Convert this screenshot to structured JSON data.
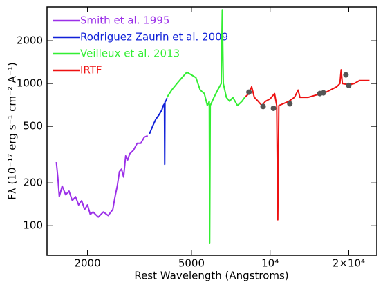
{
  "chart_data": {
    "type": "line",
    "xlabel": "Rest Wavelength (Angstroms)",
    "ylabel": "Fλ (10⁻¹⁷ erg s⁻¹ cm⁻² A⁻¹)",
    "xscale": "log",
    "yscale": "log",
    "xlim": [
      1400,
      25600
    ],
    "ylim": [
      62,
      3460
    ],
    "xticks": [
      {
        "value": 2000,
        "label": "2000"
      },
      {
        "value": 5000,
        "label": "5000"
      },
      {
        "value": 10000,
        "label": "10⁴"
      },
      {
        "value": 20000,
        "label": "2×10⁴"
      }
    ],
    "yticks": [
      100,
      200,
      500,
      1000,
      2000
    ],
    "legend": "upper left",
    "series": [
      {
        "name": "Smith et al. 1995",
        "color": "#9b30e8",
        "x": [
          1520,
          1540,
          1560,
          1600,
          1650,
          1700,
          1750,
          1800,
          1850,
          1900,
          1950,
          2000,
          2050,
          2100,
          2200,
          2300,
          2400,
          2500,
          2550,
          2600,
          2650,
          2700,
          2750,
          2800,
          2850,
          2900,
          3000,
          3100,
          3200,
          3300,
          3400
        ],
        "values": [
          280,
          220,
          160,
          190,
          165,
          175,
          150,
          160,
          140,
          150,
          130,
          140,
          120,
          125,
          115,
          125,
          118,
          130,
          160,
          190,
          240,
          250,
          220,
          310,
          290,
          320,
          340,
          380,
          380,
          420,
          430
        ]
      },
      {
        "name": "Rodriguez Zaurin et al. 2009",
        "color": "#1020d8",
        "x": [
          3450,
          3550,
          3650,
          3750,
          3850,
          3900,
          3940,
          3950,
          3960,
          4000,
          4030
        ],
        "values": [
          440,
          500,
          560,
          600,
          650,
          700,
          720,
          270,
          740,
          760,
          790
        ]
      },
      {
        "name": "Veilleux et al. 2013",
        "color": "#33ee33",
        "x": [
          4030,
          4200,
          4400,
          4600,
          4800,
          5000,
          5200,
          5400,
          5600,
          5750,
          5850,
          5870,
          5900,
          6100,
          6300,
          6500,
          6560,
          6620,
          6800,
          7000,
          7200,
          7500,
          7800,
          8000
        ],
        "values": [
          800,
          900,
          1000,
          1100,
          1200,
          1150,
          1100,
          900,
          850,
          700,
          750,
          75,
          700,
          800,
          900,
          1000,
          3300,
          1000,
          800,
          750,
          800,
          700,
          750,
          800
        ]
      },
      {
        "name": "IRTF",
        "color": "#ee1111",
        "x": [
          8000,
          8300,
          8500,
          8700,
          9000,
          9300,
          9600,
          10000,
          10400,
          10600,
          10700,
          10800,
          11200,
          11800,
          12400,
          12800,
          13000,
          14000,
          15000,
          16000,
          17000,
          18000,
          18500,
          18700,
          18900,
          20000,
          21000,
          22000,
          23000,
          24000
        ],
        "values": [
          800,
          850,
          950,
          800,
          750,
          700,
          750,
          780,
          850,
          700,
          110,
          700,
          720,
          750,
          800,
          900,
          800,
          800,
          830,
          850,
          900,
          950,
          1000,
          1250,
          1000,
          980,
          1000,
          1050,
          1050,
          1050
        ]
      }
    ],
    "points": {
      "color": "#555555",
      "x": [
        8300,
        9400,
        10300,
        11900,
        15500,
        16000,
        19500,
        20000
      ],
      "values": [
        870,
        690,
        670,
        720,
        850,
        860,
        1150,
        970
      ]
    }
  }
}
